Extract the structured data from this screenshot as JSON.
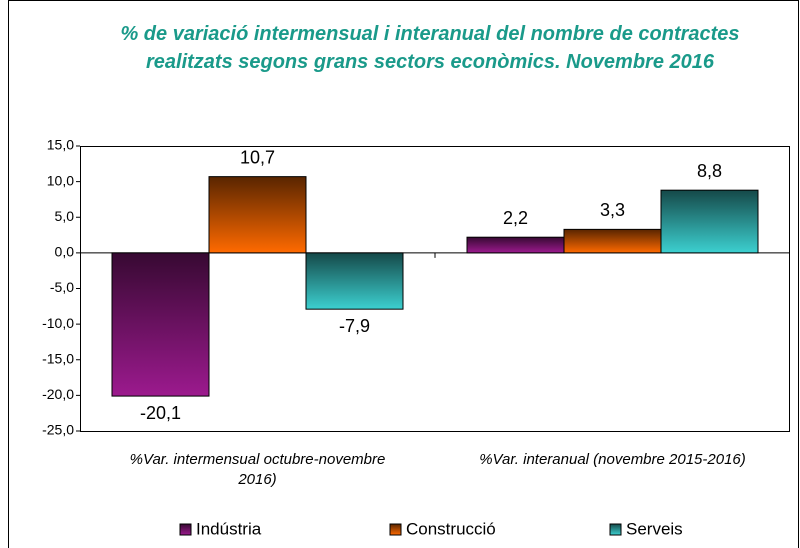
{
  "chart_data": {
    "type": "bar",
    "title": "% de variació intermensual i interanual del nombre de contractes realitzats segons grans sectors econòmics. Novembre 2016",
    "categories": [
      "%Var. intermensual octubre-novembre 2016)",
      "%Var. interanual (novembre 2015-2016)"
    ],
    "series": [
      {
        "name": "Indústria",
        "color": "#9c1a8e",
        "values": [
          -20.1,
          2.2
        ],
        "value_labels": [
          "-20,1",
          "2,2"
        ]
      },
      {
        "name": "Construcció",
        "color": "#ff6a00",
        "values": [
          10.7,
          3.3
        ],
        "value_labels": [
          "10,7",
          "3,3"
        ]
      },
      {
        "name": "Serveis",
        "color": "#3cd0d0",
        "values": [
          -7.9,
          8.8
        ],
        "value_labels": [
          "-7,9",
          "8,8"
        ]
      }
    ],
    "ylim": [
      -25,
      15
    ],
    "yticks": [
      {
        "value": -25,
        "label": "-25,0"
      },
      {
        "value": -20,
        "label": "-20,0"
      },
      {
        "value": -15,
        "label": "-15,0"
      },
      {
        "value": -10,
        "label": "-10,0"
      },
      {
        "value": -5,
        "label": "-5,0"
      },
      {
        "value": 0,
        "label": "0,0"
      },
      {
        "value": 5,
        "label": "5,0"
      },
      {
        "value": 10,
        "label": "10,0"
      },
      {
        "value": 15,
        "label": "15,0"
      }
    ],
    "legend": "bottom"
  }
}
